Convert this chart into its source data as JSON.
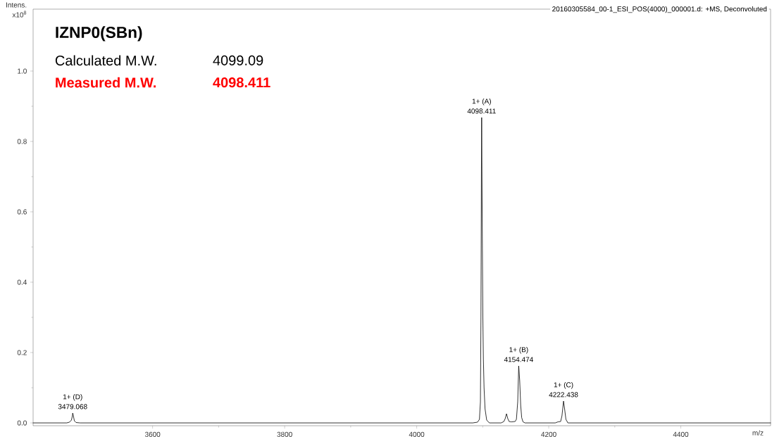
{
  "chart_data": {
    "type": "line",
    "title": "IZNP0(SBn)",
    "xlabel": "m/z",
    "ylabel": "Intens.",
    "color": "#000000",
    "marker": "none",
    "line_style": "solid",
    "grid": false,
    "x": [
      3419,
      3470,
      3474,
      3477,
      3478.5,
      3479,
      3480,
      3481.5,
      3484,
      3490,
      4085,
      4092,
      4095,
      4096.5,
      4097.3,
      4098,
      4098.4,
      4098.8,
      4099.5,
      4100.2,
      4101,
      4102,
      4103.5,
      4106,
      4110,
      4128,
      4132,
      4134,
      4136,
      4138,
      4140,
      4143,
      4149,
      4151,
      4153,
      4154.5,
      4156,
      4157.5,
      4159,
      4161,
      4164,
      4210,
      4214,
      4218,
      4220,
      4222.4,
      4224,
      4226,
      4229,
      4536
    ],
    "values": [
      0,
      0,
      0.002,
      0.008,
      0.02,
      0.028,
      0.02,
      0.006,
      0.001,
      0,
      0,
      0.002,
      0.01,
      0.06,
      0.3,
      0.72,
      0.868,
      0.72,
      0.49,
      0.3,
      0.18,
      0.1,
      0.04,
      0.008,
      0,
      0,
      0.004,
      0.012,
      0.026,
      0.012,
      0.004,
      0.003,
      0.004,
      0.01,
      0.06,
      0.162,
      0.12,
      0.05,
      0.015,
      0.003,
      0,
      0,
      0.003,
      0.004,
      0.02,
      0.062,
      0.04,
      0.01,
      0,
      0
    ],
    "xlim": [
      3419,
      4536
    ],
    "ylim": [
      -0.008,
      1.176
    ],
    "xticks": [
      3600,
      3800,
      4000,
      4200,
      4400
    ],
    "yticks": [
      {
        "value": 0,
        "label": "0.0"
      },
      {
        "value": 0.2,
        "label": "0.2"
      },
      {
        "value": 0.4,
        "label": "0.4"
      },
      {
        "value": 0.6,
        "label": "0.6"
      },
      {
        "value": 0.8,
        "label": "0.8"
      },
      {
        "value": 1.0,
        "label": "1.0"
      }
    ],
    "annotations": [
      "x10$^{8}$",
      "Calculated M.W.",
      "4099.09",
      "Measured M.W.",
      "4098.411",
      "20160305584_00-1_ESI_POS(4000)_000001.d: +MS, Deconvoluted",
      {
        "text": "4098.411",
        "x": 4098.4,
        "y": 0.868
      },
      {
        "text": "1+ (A)",
        "x": 4098.4,
        "y": 0.868
      },
      {
        "text": "4154.474",
        "x": 4154.5,
        "y": 0.162
      },
      {
        "text": "1+ (B)",
        "x": 4154.5,
        "y": 0.162
      },
      {
        "text": "4222.438",
        "x": 4222.4,
        "y": 0.062
      },
      {
        "text": "1+ (C)",
        "x": 4222.4,
        "y": 0.062
      },
      {
        "text": "3479.068",
        "x": 3479,
        "y": 0.028
      },
      {
        "text": "1+ (D)",
        "x": 3479,
        "y": 0.028
      }
    ]
  }
}
